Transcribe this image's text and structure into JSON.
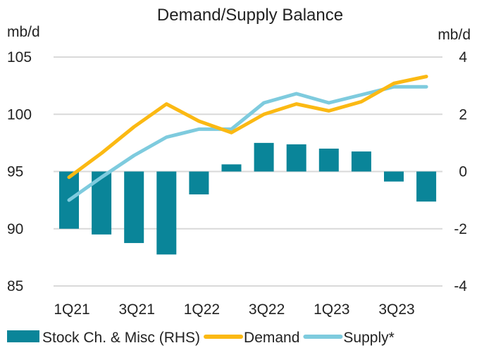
{
  "chart_data": {
    "type": "bar+line",
    "title": "Demand/Supply Balance",
    "ylabel_left": "mb/d",
    "ylabel_right": "mb/d",
    "ylim_left": [
      85,
      105
    ],
    "ylim_right": [
      -4,
      4
    ],
    "yticks_left": [
      "105",
      "100",
      "95",
      "90",
      "85"
    ],
    "yticks_right": [
      "4",
      "2",
      "0",
      "-2",
      "-4"
    ],
    "yticks_left_values": [
      105,
      100,
      95,
      90,
      85
    ],
    "yticks_right_values": [
      4,
      2,
      0,
      -2,
      -4
    ],
    "grid": true,
    "categories": [
      "1Q21",
      "2Q21",
      "3Q21",
      "4Q21",
      "1Q22",
      "2Q22",
      "3Q22",
      "4Q22",
      "1Q23",
      "2Q23",
      "3Q23",
      "4Q23"
    ],
    "xtick_labels": [
      "1Q21",
      "3Q21",
      "1Q22",
      "3Q22",
      "1Q23",
      "3Q23"
    ],
    "xtick_indices": [
      0,
      2,
      4,
      6,
      8,
      10
    ],
    "series": [
      {
        "name": "Stock Ch. & Misc (RHS)",
        "type": "bar",
        "axis": "right",
        "color": "#0a8599",
        "values": [
          -2.0,
          -2.2,
          -2.5,
          -2.9,
          -0.8,
          0.25,
          1.0,
          0.95,
          0.8,
          0.7,
          -0.35,
          -1.05
        ]
      },
      {
        "name": "Demand",
        "type": "line",
        "axis": "left",
        "color": "#fbb913",
        "values": [
          94.5,
          96.6,
          98.9,
          100.9,
          99.4,
          98.4,
          100.0,
          100.9,
          100.3,
          101.1,
          102.7,
          103.3
        ]
      },
      {
        "name": "Supply*",
        "type": "line",
        "axis": "left",
        "color": "#7ecbde",
        "values": [
          92.5,
          94.5,
          96.4,
          98.0,
          98.7,
          98.7,
          101.0,
          101.8,
          101.0,
          101.7,
          102.4,
          102.4
        ]
      }
    ],
    "legend": {
      "placement": "bottom",
      "items": [
        {
          "label": "Stock Ch. & Misc (RHS)",
          "symbol": "bar",
          "color": "#0a8599"
        },
        {
          "label": "Demand",
          "symbol": "line",
          "color": "#fbb913"
        },
        {
          "label": "Supply*",
          "symbol": "line",
          "color": "#7ecbde"
        }
      ]
    }
  }
}
